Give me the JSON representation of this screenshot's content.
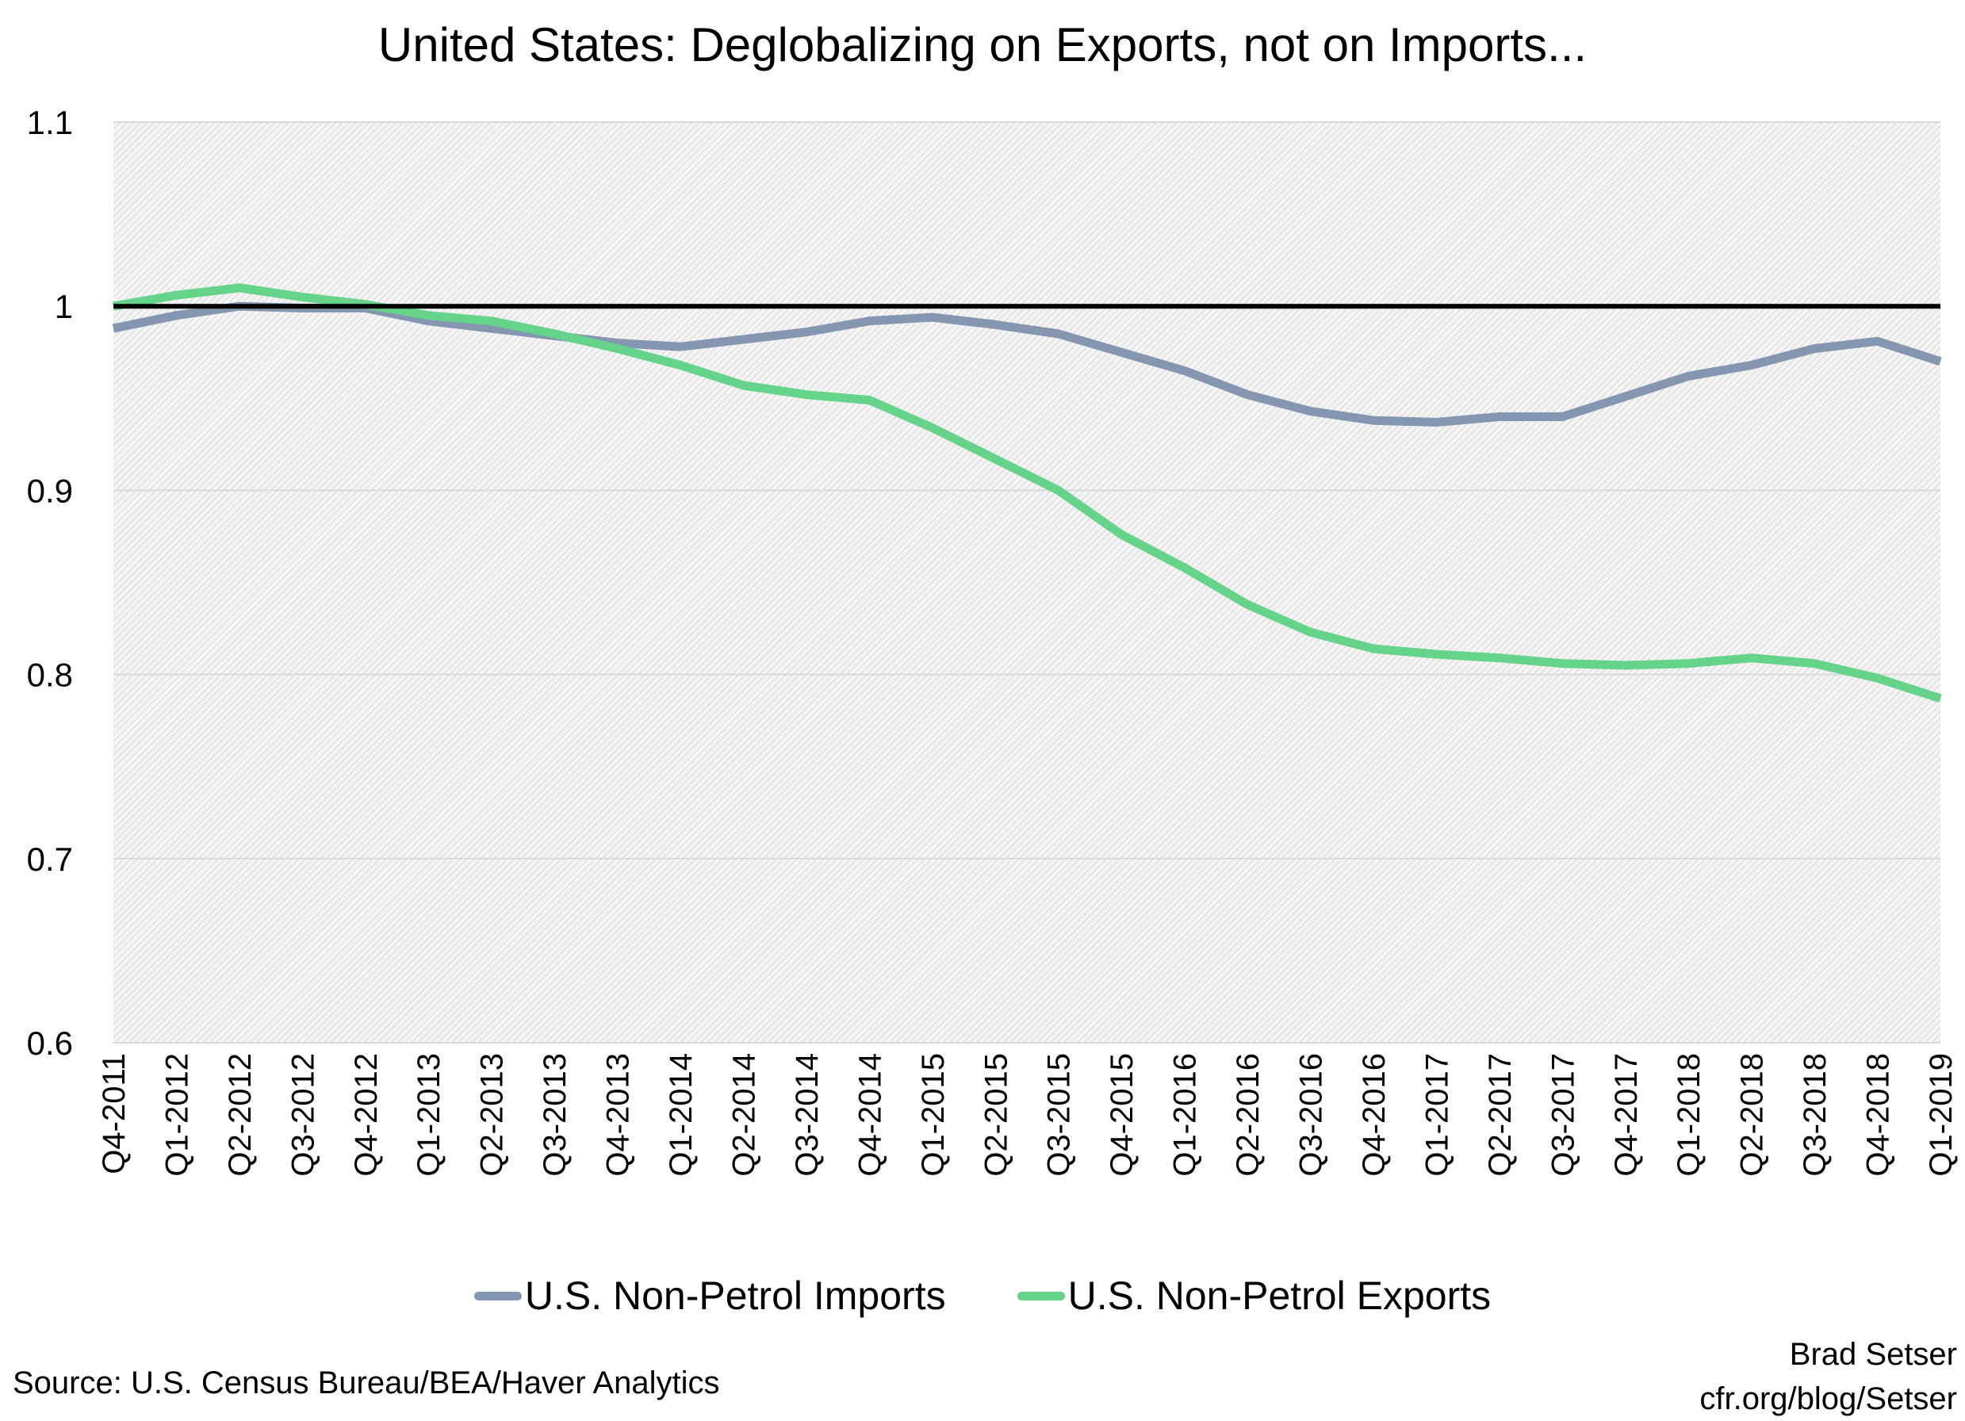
{
  "chart_data": {
    "type": "line",
    "title": "United States: Deglobalizing on Exports, not on Imports...",
    "xlabel": "",
    "ylabel": "",
    "ylim": [
      0.6,
      1.1
    ],
    "yticks": [
      "1.1",
      "1",
      "0.9",
      "0.8",
      "0.7",
      "0.6"
    ],
    "ytick_values": [
      1.1,
      1.0,
      0.9,
      0.8,
      0.7,
      0.6
    ],
    "grid": true,
    "legend_position": "bottom",
    "reference_line": {
      "value": 1.0,
      "color": "#000000"
    },
    "categories": [
      "Q4-2011",
      "Q1-2012",
      "Q2-2012",
      "Q3-2012",
      "Q4-2012",
      "Q1-2013",
      "Q2-2013",
      "Q3-2013",
      "Q4-2013",
      "Q1-2014",
      "Q2-2014",
      "Q3-2014",
      "Q4-2014",
      "Q1-2015",
      "Q2-2015",
      "Q3-2015",
      "Q4-2015",
      "Q1-2016",
      "Q2-2016",
      "Q3-2016",
      "Q4-2016",
      "Q1-2017",
      "Q2-2017",
      "Q3-2017",
      "Q4-2017",
      "Q1-2018",
      "Q2-2018",
      "Q3-2018",
      "Q4-2018",
      "Q1-2019"
    ],
    "series": [
      {
        "name": "U.S. Non-Petrol Imports",
        "color": "#8496b0",
        "values": [
          0.988,
          0.995,
          1.0,
          0.999,
          0.999,
          0.992,
          0.988,
          0.984,
          0.98,
          0.978,
          0.982,
          0.986,
          0.992,
          0.994,
          0.99,
          0.985,
          0.975,
          0.965,
          0.952,
          0.943,
          0.938,
          0.937,
          0.94,
          0.94,
          0.951,
          0.962,
          0.968,
          0.977,
          0.981,
          0.97
        ]
      },
      {
        "name": "U.S. Non-Petrol Exports",
        "color": "#66d38a",
        "values": [
          1.0,
          1.006,
          1.01,
          1.005,
          1.001,
          0.995,
          0.992,
          0.985,
          0.977,
          0.968,
          0.957,
          0.952,
          0.949,
          0.934,
          0.917,
          0.9,
          0.876,
          0.858,
          0.838,
          0.823,
          0.814,
          0.811,
          0.809,
          0.806,
          0.805,
          0.806,
          0.809,
          0.806,
          0.798,
          0.787
        ]
      }
    ]
  },
  "footer": {
    "source": "Source: U.S. Census Bureau/BEA/Haver Analytics",
    "author": "Brad Setser",
    "site": "cfr.org/blog/Setser"
  }
}
